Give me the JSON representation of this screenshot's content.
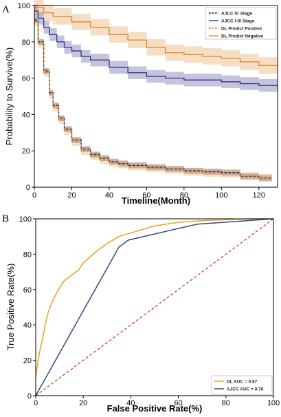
{
  "chart_data": [
    {
      "panel": "A",
      "type": "line",
      "title": "",
      "xlabel": "Timeline(Month)",
      "ylabel": "Probability to Survive(%)",
      "xlim": [
        0,
        130
      ],
      "ylim": [
        0,
        100
      ],
      "xticks": [
        0,
        20,
        40,
        60,
        80,
        100,
        120
      ],
      "yticks": [
        0,
        20,
        40,
        60,
        80,
        100
      ],
      "grid": false,
      "legend_position": "top-right",
      "series": [
        {
          "name": "AJCC IV Stage",
          "style": "dashed",
          "color": "#2b2a4c",
          "x": [
            0,
            2,
            5,
            8,
            10,
            13,
            16,
            20,
            25,
            30,
            35,
            40,
            45,
            50,
            60,
            70,
            80,
            90,
            100,
            110,
            120,
            127
          ],
          "y": [
            92,
            80,
            64,
            52,
            45,
            38,
            32,
            26,
            21,
            18,
            16,
            14,
            13,
            12,
            11,
            10,
            9,
            8.5,
            8,
            6,
            5,
            5
          ],
          "band": 1.6
        },
        {
          "name": "AJCC I-III Stage",
          "style": "solid",
          "color": "#3b3c8c",
          "x": [
            0,
            2,
            5,
            8,
            12,
            16,
            20,
            25,
            30,
            40,
            50,
            60,
            70,
            80,
            90,
            100,
            110,
            120,
            130
          ],
          "y": [
            97,
            93,
            88,
            84,
            80,
            77,
            75,
            72,
            70,
            66,
            63,
            61,
            60,
            59,
            59,
            58,
            57,
            56,
            55
          ],
          "band": 3.5
        },
        {
          "name": "DL Predict Positive",
          "style": "dashed",
          "color": "#e0892f",
          "x": [
            0,
            2,
            5,
            8,
            10,
            13,
            16,
            20,
            25,
            30,
            35,
            40,
            45,
            50,
            60,
            70,
            80,
            90,
            100,
            110,
            120,
            127
          ],
          "y": [
            91,
            79,
            63,
            51,
            44,
            37,
            31,
            25,
            20,
            17,
            15,
            13.5,
            12.5,
            11.5,
            10.5,
            9.5,
            8.5,
            8,
            7.5,
            6,
            5,
            5
          ],
          "band": 2.2
        },
        {
          "name": "DL Predict Negative",
          "style": "solid",
          "color": "#e0892f",
          "x": [
            0,
            5,
            10,
            20,
            30,
            40,
            50,
            60,
            70,
            80,
            90,
            100,
            110,
            120,
            130
          ],
          "y": [
            99,
            96,
            94,
            91,
            88,
            84,
            81,
            77,
            74,
            73,
            72,
            71,
            69,
            67,
            66
          ],
          "band": 4.5
        }
      ]
    },
    {
      "panel": "B",
      "type": "line",
      "title": "",
      "xlabel": "False Positive Rate(%)",
      "ylabel": "True Positive Rate(%)",
      "xlim": [
        0,
        100
      ],
      "ylim": [
        0,
        100
      ],
      "xticks": [
        0,
        20,
        40,
        60,
        80,
        100
      ],
      "yticks": [
        0,
        20,
        40,
        60,
        80,
        100
      ],
      "grid": false,
      "legend_position": "bottom-right",
      "series": [
        {
          "name": "DL AUC = 0.87",
          "color": "#e8a21a",
          "x": [
            0,
            0.5,
            1,
            2,
            3,
            4,
            5,
            6,
            8,
            10,
            12,
            15,
            18,
            20,
            25,
            30,
            35,
            40,
            45,
            50,
            55,
            60,
            70,
            80,
            90,
            100
          ],
          "y": [
            10,
            15,
            20,
            27,
            33,
            40,
            46,
            50,
            56,
            61,
            65,
            68,
            71,
            75,
            81,
            86,
            90,
            92,
            94,
            96,
            97,
            98,
            99,
            99.5,
            100,
            100
          ]
        },
        {
          "name": "AJCC AUC = 0.76",
          "color": "#2e4a7c",
          "x": [
            0,
            35,
            39,
            68,
            100
          ],
          "y": [
            0,
            84,
            88,
            97,
            100
          ]
        },
        {
          "name": "",
          "style": "dashed",
          "color": "#d12a2a",
          "x": [
            0,
            100
          ],
          "y": [
            0,
            100
          ]
        }
      ]
    }
  ]
}
